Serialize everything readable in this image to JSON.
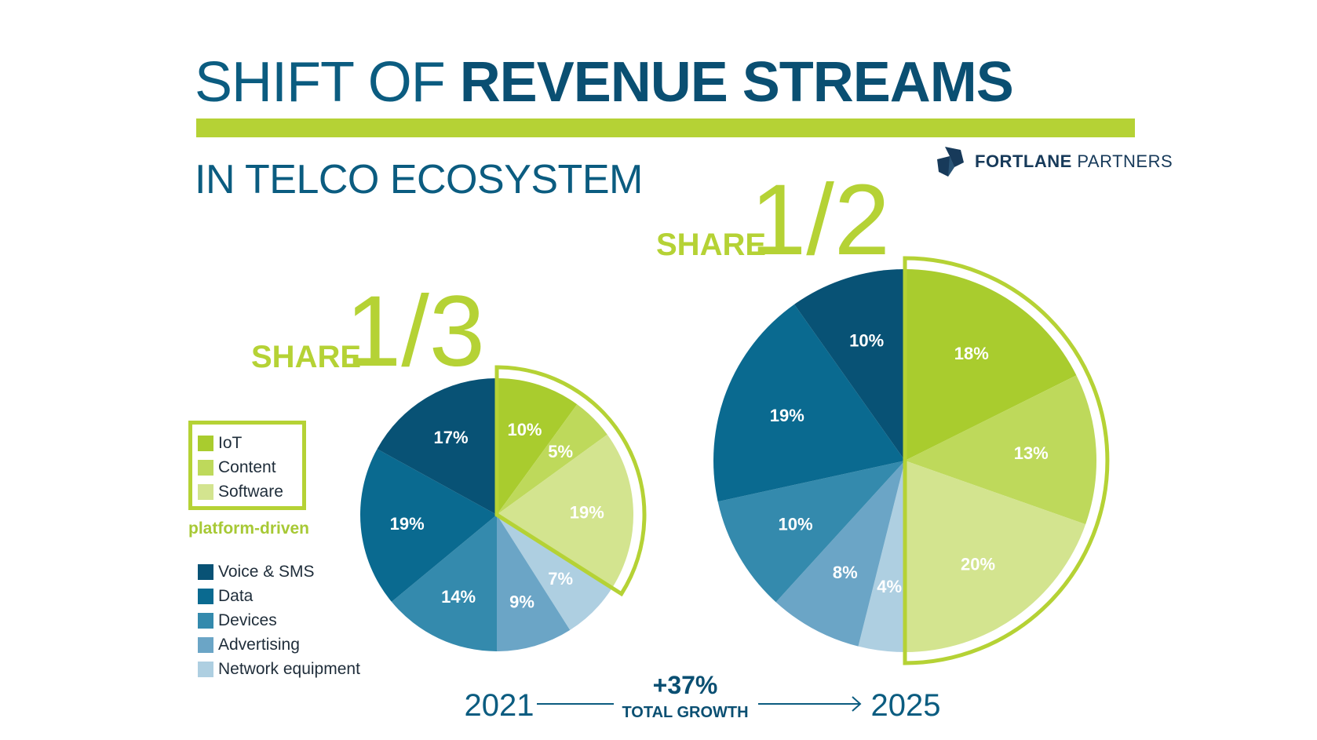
{
  "header": {
    "title_light": "SHIFT OF",
    "title_bold": "REVENUE STREAMS",
    "subtitle": "IN TELCO ECOSYSTEM",
    "brand_bold": "FORTLANE",
    "brand_light": "PARTNERS"
  },
  "legend": {
    "group_label": "platform-driven",
    "items": [
      {
        "label": "IoT",
        "color": "#a9cc2e"
      },
      {
        "label": "Content",
        "color": "#bed95b"
      },
      {
        "label": "Software",
        "color": "#d3e48f"
      },
      {
        "label": "Voice & SMS",
        "color": "#085275"
      },
      {
        "label": "Data",
        "color": "#0a6a90"
      },
      {
        "label": "Devices",
        "color": "#348aad"
      },
      {
        "label": "Advertising",
        "color": "#6ba5c6"
      },
      {
        "label": "Network equipment",
        "color": "#aecfe1"
      }
    ]
  },
  "growth": {
    "value": "+37%",
    "label": "TOTAL GROWTH"
  },
  "chart_data": [
    {
      "type": "pie",
      "year": "2021",
      "share_label": "SHARE",
      "share_value": "1/3",
      "categories": [
        "IoT",
        "Content",
        "Software",
        "Network equipment",
        "Advertising",
        "Devices",
        "Data",
        "Voice & SMS"
      ],
      "values": [
        10,
        5,
        19,
        7,
        9,
        14,
        19,
        17
      ],
      "labels": [
        "10%",
        "5%",
        "19%",
        "7%",
        "9%",
        "14%",
        "19%",
        "17%"
      ],
      "highlight": [
        "IoT",
        "Content",
        "Software"
      ]
    },
    {
      "type": "pie",
      "year": "2025",
      "share_label": "SHARE",
      "share_value": "1/2",
      "categories": [
        "IoT",
        "Content",
        "Software",
        "Network equipment",
        "Advertising",
        "Devices",
        "Data",
        "Voice & SMS"
      ],
      "values": [
        18,
        13,
        20,
        4,
        8,
        10,
        19,
        10
      ],
      "labels": [
        "18%",
        "13%",
        "20%",
        "4%",
        "8%",
        "10%",
        "19%",
        "10%"
      ],
      "highlight": [
        "IoT",
        "Content",
        "Software"
      ]
    }
  ]
}
